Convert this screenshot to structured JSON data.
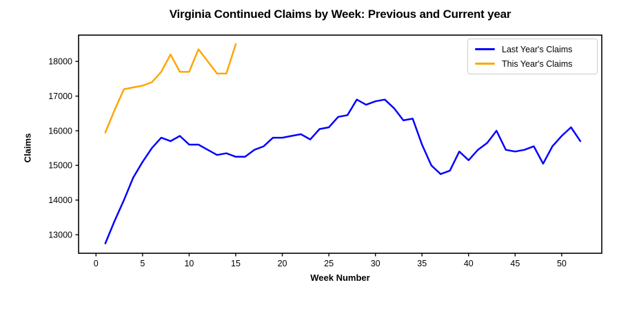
{
  "chart_data": {
    "type": "line",
    "title": "Virginia Continued Claims by Week: Previous and Current year",
    "xlabel": "Week Number",
    "ylabel": "Claims",
    "x_ticks": [
      0,
      5,
      10,
      15,
      20,
      25,
      30,
      35,
      40,
      45,
      50
    ],
    "y_ticks": [
      13000,
      14000,
      15000,
      16000,
      17000,
      18000
    ],
    "xlim": [
      -1.87,
      54.3
    ],
    "ylim": [
      12465,
      18760
    ],
    "grid": false,
    "legend_position": "upper right",
    "axis_color": "#000000",
    "series": [
      {
        "name": "Last Year's Claims",
        "color": "#0000FF",
        "x": [
          1,
          2,
          3,
          4,
          5,
          6,
          7,
          8,
          9,
          10,
          11,
          12,
          13,
          14,
          15,
          16,
          17,
          18,
          19,
          20,
          21,
          22,
          23,
          24,
          25,
          26,
          27,
          28,
          29,
          30,
          31,
          32,
          33,
          34,
          35,
          36,
          37,
          38,
          39,
          40,
          41,
          42,
          43,
          44,
          45,
          46,
          47,
          48,
          49,
          50,
          51,
          52
        ],
        "values": [
          12750,
          13400,
          14000,
          14650,
          15100,
          15500,
          15800,
          15700,
          15850,
          15600,
          15600,
          15450,
          15300,
          15350,
          15250,
          15250,
          15450,
          15550,
          15800,
          15800,
          15850,
          15900,
          15750,
          16050,
          16100,
          16400,
          16450,
          16900,
          16750,
          16850,
          16900,
          16650,
          16300,
          16350,
          15600,
          15000,
          14750,
          14850,
          15400,
          15150,
          15450,
          15650,
          16000,
          15450,
          15400,
          15450,
          15550,
          15050,
          15550,
          15850,
          16100,
          15700
        ]
      },
      {
        "name": "This Year's Claims",
        "color": "#FFA500",
        "x": [
          1,
          2,
          3,
          4,
          5,
          6,
          7,
          8,
          9,
          10,
          11,
          12,
          13,
          14,
          15
        ],
        "values": [
          15950,
          16600,
          17200,
          17250,
          17300,
          17400,
          17700,
          18200,
          17700,
          17700,
          18350,
          18000,
          17650,
          17650,
          18500
        ]
      }
    ]
  }
}
